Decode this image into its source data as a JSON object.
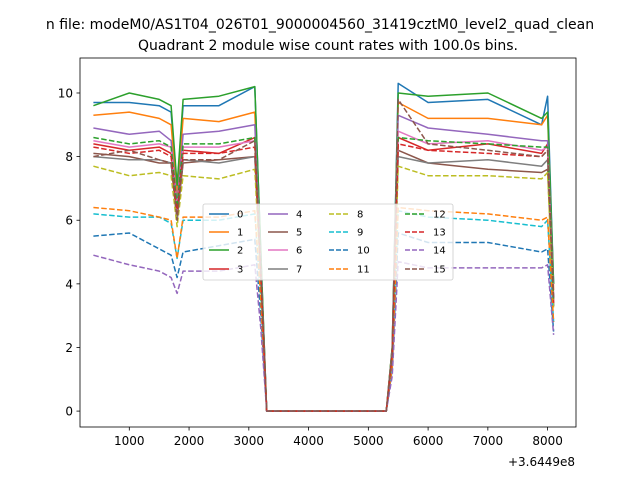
{
  "figure": {
    "suptitle": "n file: modeM0/AS1T04_026T01_9000004560_31419cztM0_level2_quad_clean"
  },
  "chart_data": {
    "type": "line",
    "title": "Quadrant 2 module wise count rates with 100.0s bins.",
    "xlabel": "",
    "ylabel": "",
    "x_offset_text": "+3.6449e8",
    "x_offset_value": 364490000,
    "xlim": [
      175,
      8475
    ],
    "ylim": [
      -0.5,
      11.1
    ],
    "xticks": [
      1000,
      2000,
      3000,
      4000,
      5000,
      6000,
      7000,
      8000
    ],
    "yticks": [
      0,
      2,
      4,
      6,
      8,
      10
    ],
    "grid": false,
    "legend_position": "center",
    "legend_columns": 4,
    "x_note": "x values are offsets from 3.6449e8 as printed on the axis",
    "x": [
      400,
      1000,
      1500,
      1700,
      1800,
      1900,
      2500,
      3100,
      3200,
      3300,
      4000,
      5000,
      5300,
      5400,
      5500,
      6000,
      7000,
      7900,
      8000,
      8100
    ],
    "series": [
      {
        "name": "0",
        "color": "#1f77b4",
        "dash": "solid",
        "values": [
          9.7,
          9.7,
          9.6,
          9.4,
          7.0,
          9.6,
          9.6,
          10.2,
          5.0,
          0.0,
          0.0,
          0.0,
          0.0,
          2.0,
          10.3,
          9.7,
          9.8,
          9.0,
          9.9,
          4.0
        ]
      },
      {
        "name": "1",
        "color": "#ff7f0e",
        "dash": "solid",
        "values": [
          9.3,
          9.4,
          9.2,
          9.0,
          6.8,
          9.2,
          9.1,
          9.4,
          4.8,
          0.0,
          0.0,
          0.0,
          0.0,
          2.0,
          9.7,
          9.2,
          9.2,
          9.0,
          9.3,
          3.8
        ]
      },
      {
        "name": "2",
        "color": "#2ca02c",
        "dash": "solid",
        "values": [
          9.6,
          10.0,
          9.8,
          9.6,
          7.1,
          9.8,
          9.9,
          10.2,
          5.0,
          0.0,
          0.0,
          0.0,
          0.0,
          2.0,
          10.0,
          9.9,
          10.0,
          9.2,
          9.4,
          4.0
        ]
      },
      {
        "name": "3",
        "color": "#d62728",
        "dash": "solid",
        "values": [
          8.4,
          8.2,
          8.3,
          8.1,
          6.2,
          8.2,
          8.1,
          8.6,
          4.3,
          0.0,
          0.0,
          0.0,
          0.0,
          1.8,
          8.6,
          8.2,
          8.4,
          8.1,
          8.4,
          3.5
        ]
      },
      {
        "name": "4",
        "color": "#9467bd",
        "dash": "solid",
        "values": [
          8.9,
          8.7,
          8.8,
          8.5,
          6.5,
          8.7,
          8.8,
          9.0,
          4.6,
          0.0,
          0.0,
          0.0,
          0.0,
          1.9,
          9.3,
          8.9,
          8.7,
          8.5,
          8.5,
          3.6
        ]
      },
      {
        "name": "5",
        "color": "#8c564b",
        "dash": "solid",
        "values": [
          8.1,
          8.0,
          7.8,
          7.8,
          6.0,
          7.8,
          7.9,
          8.0,
          4.2,
          0.0,
          0.0,
          0.0,
          0.0,
          1.7,
          8.2,
          7.8,
          7.6,
          7.5,
          7.6,
          3.3
        ]
      },
      {
        "name": "6",
        "color": "#e377c2",
        "dash": "solid",
        "values": [
          8.5,
          8.3,
          8.4,
          8.3,
          6.3,
          8.3,
          8.3,
          8.5,
          4.4,
          0.0,
          0.0,
          0.0,
          0.0,
          1.8,
          8.8,
          8.4,
          8.5,
          8.2,
          8.3,
          3.5
        ]
      },
      {
        "name": "7",
        "color": "#7f7f7f",
        "dash": "solid",
        "values": [
          8.0,
          7.9,
          7.9,
          7.8,
          6.0,
          7.9,
          7.8,
          8.0,
          4.2,
          0.0,
          0.0,
          0.0,
          0.0,
          1.7,
          8.0,
          7.8,
          7.9,
          7.7,
          7.9,
          3.3
        ]
      },
      {
        "name": "8",
        "color": "#bcbd22",
        "dash": "dash",
        "values": [
          7.7,
          7.4,
          7.5,
          7.4,
          5.8,
          7.4,
          7.3,
          7.6,
          4.0,
          0.0,
          0.0,
          0.0,
          0.0,
          1.6,
          7.7,
          7.4,
          7.4,
          7.3,
          7.5,
          3.2
        ]
      },
      {
        "name": "9",
        "color": "#17becf",
        "dash": "dash",
        "values": [
          6.2,
          6.1,
          6.1,
          5.9,
          4.8,
          6.0,
          6.0,
          6.2,
          3.5,
          0.0,
          0.0,
          0.0,
          0.0,
          1.4,
          6.3,
          6.1,
          6.0,
          5.8,
          6.0,
          2.8
        ]
      },
      {
        "name": "10",
        "color": "#1f77b4",
        "dash": "dash",
        "values": [
          5.5,
          5.6,
          5.1,
          4.9,
          4.2,
          5.0,
          5.2,
          5.4,
          3.0,
          0.0,
          0.0,
          0.0,
          0.0,
          1.3,
          5.6,
          5.3,
          5.3,
          5.0,
          5.1,
          2.5
        ]
      },
      {
        "name": "11",
        "color": "#ff7f0e",
        "dash": "dash",
        "values": [
          6.4,
          6.3,
          6.1,
          6.0,
          4.8,
          6.1,
          6.1,
          6.3,
          3.5,
          0.0,
          0.0,
          0.0,
          0.0,
          1.4,
          6.4,
          6.3,
          6.2,
          6.0,
          6.1,
          2.8
        ]
      },
      {
        "name": "12",
        "color": "#2ca02c",
        "dash": "dash",
        "values": [
          8.6,
          8.4,
          8.5,
          8.3,
          6.4,
          8.4,
          8.4,
          8.6,
          4.5,
          0.0,
          0.0,
          0.0,
          0.0,
          1.8,
          8.6,
          8.5,
          8.4,
          8.3,
          8.3,
          3.5
        ]
      },
      {
        "name": "13",
        "color": "#d62728",
        "dash": "dash",
        "values": [
          8.3,
          8.1,
          8.2,
          8.0,
          6.2,
          8.1,
          8.1,
          8.3,
          4.3,
          0.0,
          0.0,
          0.0,
          0.0,
          1.8,
          8.4,
          8.2,
          8.1,
          8.0,
          8.2,
          3.4
        ]
      },
      {
        "name": "14",
        "color": "#9467bd",
        "dash": "dash",
        "values": [
          4.9,
          4.6,
          4.4,
          4.2,
          3.7,
          4.4,
          4.4,
          4.6,
          2.6,
          0.0,
          0.0,
          0.0,
          0.0,
          1.1,
          4.7,
          4.5,
          4.5,
          4.5,
          4.6,
          2.4
        ]
      },
      {
        "name": "15",
        "color": "#8c564b",
        "dash": "dash",
        "values": [
          8.0,
          8.2,
          7.9,
          7.8,
          6.0,
          7.9,
          7.9,
          8.5,
          4.3,
          0.0,
          0.0,
          0.0,
          0.0,
          1.8,
          9.8,
          8.4,
          8.2,
          8.0,
          8.2,
          3.5
        ]
      }
    ]
  }
}
